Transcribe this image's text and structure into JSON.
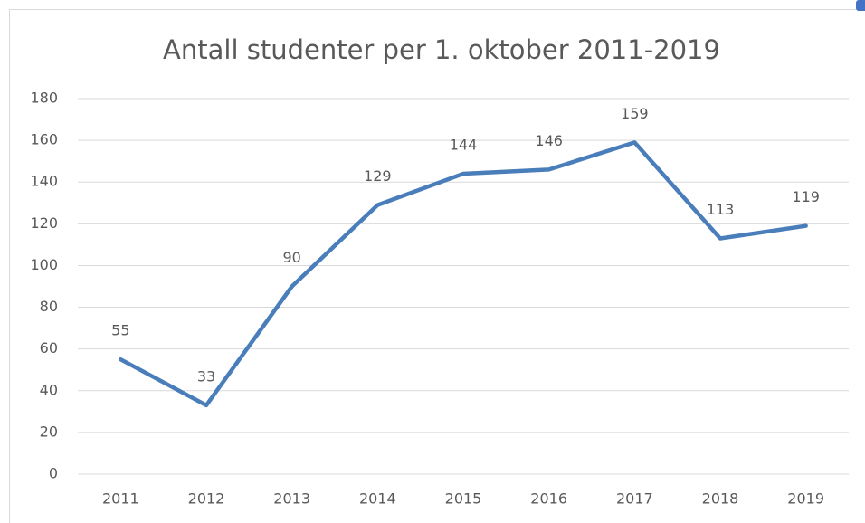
{
  "chart_data": {
    "type": "line",
    "title": "Antall studenter per 1. oktober 2011-2019",
    "categories": [
      "2011",
      "2012",
      "2013",
      "2014",
      "2015",
      "2016",
      "2017",
      "2018",
      "2019"
    ],
    "series": [
      {
        "name": "Antall studenter",
        "color": "#4a7ebb",
        "values": [
          55,
          33,
          90,
          129,
          144,
          146,
          159,
          113,
          119
        ]
      }
    ],
    "ylim": [
      0,
      180
    ],
    "yticks": [
      0,
      20,
      40,
      60,
      80,
      100,
      120,
      140,
      160,
      180
    ],
    "grid": true,
    "data_labels": true
  }
}
